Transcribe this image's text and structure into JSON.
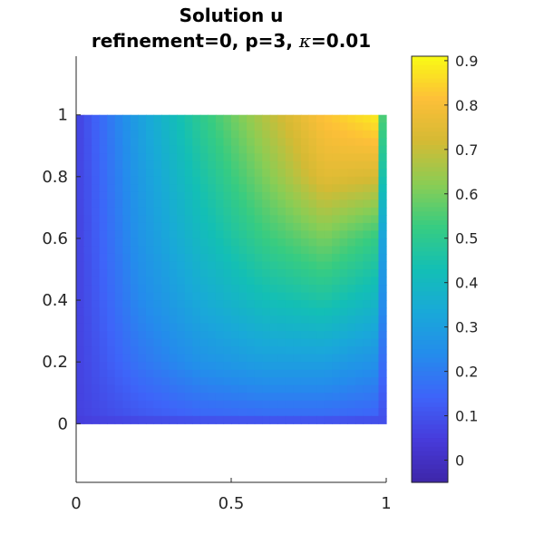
{
  "chart_data": {
    "type": "heatmap",
    "title": "Solution u",
    "subtitle_prefix": "refinement=0, p=3, ",
    "subtitle_symbol": "κ",
    "subtitle_suffix": "=0.01",
    "xlabel": "",
    "ylabel": "",
    "xlim": [
      0,
      1
    ],
    "ylim": [
      -0.19,
      1.19
    ],
    "x_ticks": [
      0,
      0.5,
      1
    ],
    "x_tick_labels": [
      "0",
      "0.5",
      "1"
    ],
    "y_ticks": [
      0,
      0.2,
      0.4,
      0.6,
      0.8,
      1
    ],
    "y_tick_labels": [
      "0",
      "0.2",
      "0.4",
      "0.6",
      "0.8",
      "1"
    ],
    "domain": {
      "x": [
        0,
        1
      ],
      "y": [
        0,
        1
      ]
    },
    "field": {
      "x": [
        0,
        0.2,
        0.4,
        0.6,
        0.8,
        1
      ],
      "y": [
        1,
        0.8,
        0.6,
        0.4,
        0.2,
        0
      ],
      "values": [
        [
          0.06,
          0.3,
          0.5,
          0.67,
          0.82,
          0.9
        ],
        [
          0.06,
          0.28,
          0.45,
          0.6,
          0.75,
          0.72
        ],
        [
          0.06,
          0.26,
          0.4,
          0.52,
          0.6,
          0.5
        ],
        [
          0.06,
          0.23,
          0.34,
          0.42,
          0.46,
          0.38
        ],
        [
          0.06,
          0.18,
          0.26,
          0.3,
          0.3,
          0.25
        ],
        [
          0.06,
          0.1,
          0.13,
          0.14,
          0.14,
          0.12
        ]
      ],
      "edge_value": 0.04
    },
    "colorbar": {
      "colormap": "parula",
      "limits": [
        -0.05,
        0.91
      ],
      "ticks": [
        0,
        0.1,
        0.2,
        0.3,
        0.4,
        0.5,
        0.6,
        0.7,
        0.8,
        0.9
      ],
      "tick_labels": [
        "0",
        "0.1",
        "0.2",
        "0.3",
        "0.4",
        "0.5",
        "0.6",
        "0.7",
        "0.8",
        "0.9"
      ]
    },
    "grid": false,
    "legend": "colorbar right"
  }
}
